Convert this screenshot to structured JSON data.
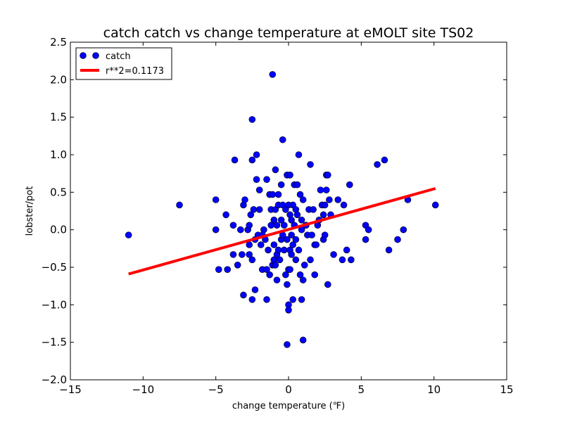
{
  "chart_data": {
    "type": "scatter",
    "title": "catch catch vs change temperature at eMOLT site TS02",
    "xlabel": "change temperature (℉)",
    "ylabel": "lobster/pot",
    "xlim": [
      -15,
      15
    ],
    "ylim": [
      -2.0,
      2.5
    ],
    "xticks": [
      -15,
      -10,
      -5,
      0,
      5,
      10,
      15
    ],
    "xtick_labels": [
      "−15",
      "−10",
      "−5",
      "0",
      "5",
      "10",
      "15"
    ],
    "yticks": [
      -2.0,
      -1.5,
      -1.0,
      -0.5,
      0.0,
      0.5,
      1.0,
      1.5,
      2.0,
      2.5
    ],
    "ytick_labels": [
      "−2.0",
      "−1.5",
      "−1.0",
      "−0.5",
      "0.0",
      "0.5",
      "1.0",
      "1.5",
      "2.0",
      "2.5"
    ],
    "grid": false,
    "legend_position": "top-left",
    "series": [
      {
        "name": "catch",
        "kind": "markers",
        "color": "#0000ff",
        "points": [
          [
            -11.0,
            -0.07
          ],
          [
            -7.5,
            0.33
          ],
          [
            -5.0,
            0.4
          ],
          [
            -5.0,
            0.0
          ],
          [
            -4.8,
            -0.53
          ],
          [
            -4.3,
            0.2
          ],
          [
            -4.2,
            -0.53
          ],
          [
            -3.8,
            0.06
          ],
          [
            -3.7,
            0.93
          ],
          [
            -3.8,
            -0.33
          ],
          [
            -3.5,
            -0.47
          ],
          [
            -3.3,
            0.0
          ],
          [
            -3.2,
            -0.33
          ],
          [
            -3.1,
            -0.87
          ],
          [
            -3.1,
            0.33
          ],
          [
            -3.0,
            0.4
          ],
          [
            -2.8,
            0.0
          ],
          [
            -2.7,
            -0.2
          ],
          [
            -2.7,
            -0.33
          ],
          [
            -2.6,
            0.2
          ],
          [
            -2.5,
            0.93
          ],
          [
            -2.5,
            -0.4
          ],
          [
            -2.5,
            -0.93
          ],
          [
            -2.5,
            1.47
          ],
          [
            -2.4,
            0.27
          ],
          [
            -2.3,
            -0.13
          ],
          [
            -2.3,
            -0.8
          ],
          [
            -2.2,
            0.67
          ],
          [
            -2.2,
            1.0
          ],
          [
            -2.1,
            -0.07
          ],
          [
            -2.0,
            0.27
          ],
          [
            -2.0,
            0.53
          ],
          [
            -1.9,
            -0.2
          ],
          [
            -1.8,
            -0.53
          ],
          [
            -1.7,
            0.0
          ],
          [
            -1.6,
            -0.13
          ],
          [
            -1.5,
            -0.93
          ],
          [
            -1.5,
            0.67
          ],
          [
            -1.5,
            -0.53
          ],
          [
            -1.4,
            -0.27
          ],
          [
            -1.3,
            0.47
          ],
          [
            -1.3,
            -0.6
          ],
          [
            -1.2,
            0.27
          ],
          [
            -1.2,
            0.06
          ],
          [
            -1.1,
            2.07
          ],
          [
            -1.1,
            -0.47
          ],
          [
            -1.1,
            0.47
          ],
          [
            -1.0,
            -0.4
          ],
          [
            -1.0,
            0.13
          ],
          [
            -1.0,
            -0.2
          ],
          [
            -0.9,
            0.8
          ],
          [
            -0.9,
            0.27
          ],
          [
            -0.9,
            -0.47
          ],
          [
            -0.8,
            0.06
          ],
          [
            -0.8,
            -0.33
          ],
          [
            -0.8,
            -0.67
          ],
          [
            -0.7,
            0.47
          ],
          [
            -0.7,
            -0.27
          ],
          [
            -0.7,
            0.33
          ],
          [
            -0.6,
            -0.4
          ],
          [
            -0.5,
            0.6
          ],
          [
            -0.5,
            0.13
          ],
          [
            -0.5,
            -0.13
          ],
          [
            -0.4,
            1.2
          ],
          [
            -0.4,
            0.33
          ],
          [
            -0.4,
            -0.07
          ],
          [
            -0.3,
            -0.27
          ],
          [
            -0.3,
            0.06
          ],
          [
            -0.2,
            0.27
          ],
          [
            -0.2,
            -0.6
          ],
          [
            -0.1,
            0.73
          ],
          [
            -0.1,
            -0.13
          ],
          [
            -0.1,
            -0.73
          ],
          [
            -0.1,
            -1.53
          ],
          [
            0.0,
            0.33
          ],
          [
            0.0,
            -0.53
          ],
          [
            0.0,
            -1.0
          ],
          [
            0.0,
            -1.07
          ],
          [
            0.1,
            0.73
          ],
          [
            0.1,
            0.2
          ],
          [
            0.1,
            -0.27
          ],
          [
            0.1,
            -0.53
          ],
          [
            0.2,
            0.13
          ],
          [
            0.2,
            -0.07
          ],
          [
            0.3,
            -0.2
          ],
          [
            0.3,
            -0.93
          ],
          [
            0.3,
            0.33
          ],
          [
            0.4,
            0.06
          ],
          [
            0.4,
            0.6
          ],
          [
            0.5,
            -0.13
          ],
          [
            0.5,
            0.27
          ],
          [
            0.5,
            -0.4
          ],
          [
            0.6,
            0.6
          ],
          [
            0.6,
            0.2
          ],
          [
            0.7,
            1.0
          ],
          [
            0.7,
            -0.27
          ],
          [
            0.8,
            0.47
          ],
          [
            0.8,
            -0.6
          ],
          [
            0.9,
            0.13
          ],
          [
            0.9,
            -0.93
          ],
          [
            0.9,
            0.0
          ],
          [
            1.0,
            -0.67
          ],
          [
            1.0,
            -1.47
          ],
          [
            1.0,
            0.4
          ],
          [
            1.1,
            -0.47
          ],
          [
            1.2,
            0.06
          ],
          [
            1.3,
            -0.07
          ],
          [
            1.4,
            0.27
          ],
          [
            1.5,
            -0.4
          ],
          [
            1.5,
            0.87
          ],
          [
            1.6,
            -0.07
          ],
          [
            1.7,
            0.27
          ],
          [
            1.8,
            -0.2
          ],
          [
            1.8,
            -0.6
          ],
          [
            1.9,
            -0.2
          ],
          [
            2.0,
            0.06
          ],
          [
            2.1,
            0.13
          ],
          [
            2.2,
            0.53
          ],
          [
            2.3,
            0.33
          ],
          [
            2.4,
            0.2
          ],
          [
            2.4,
            -0.13
          ],
          [
            2.5,
            -0.07
          ],
          [
            2.5,
            0.33
          ],
          [
            2.6,
            0.53
          ],
          [
            2.6,
            0.73
          ],
          [
            2.7,
            -0.73
          ],
          [
            2.7,
            0.73
          ],
          [
            2.8,
            0.4
          ],
          [
            2.9,
            0.2
          ],
          [
            3.1,
            -0.33
          ],
          [
            3.4,
            0.4
          ],
          [
            3.7,
            -0.4
          ],
          [
            3.8,
            0.33
          ],
          [
            4.0,
            -0.27
          ],
          [
            4.2,
            0.6
          ],
          [
            4.3,
            -0.4
          ],
          [
            5.3,
            0.06
          ],
          [
            5.3,
            -0.13
          ],
          [
            5.5,
            0.0
          ],
          [
            6.1,
            0.87
          ],
          [
            6.6,
            0.93
          ],
          [
            6.9,
            -0.27
          ],
          [
            7.5,
            -0.13
          ],
          [
            7.9,
            0.0
          ],
          [
            8.2,
            0.4
          ],
          [
            10.1,
            0.33
          ],
          [
            -2.7,
            0.06
          ],
          [
            -1.8,
            -0.07
          ],
          [
            0.2,
            -0.33
          ],
          [
            1.2,
            0.06
          ]
        ]
      },
      {
        "name": "r**2=0.1173",
        "kind": "line",
        "color": "#ff0000",
        "points": [
          [
            -11.0,
            -0.59
          ],
          [
            10.1,
            0.55
          ]
        ]
      }
    ]
  }
}
